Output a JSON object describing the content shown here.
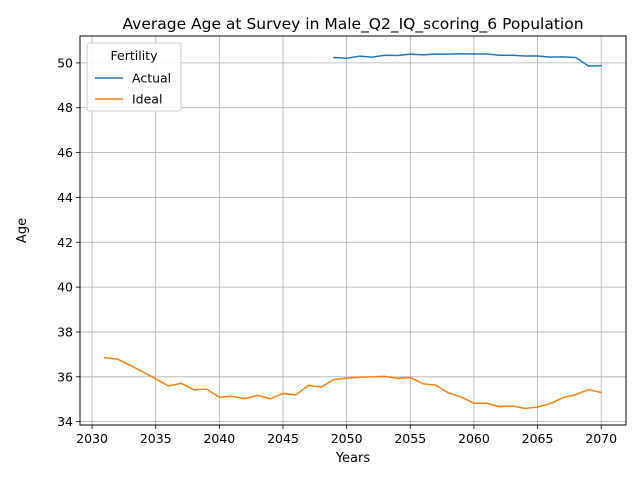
{
  "chart_data": {
    "type": "line",
    "title": "Average Age at Survey in Male_Q2_IQ_scoring_6 Population",
    "xlabel": "Years",
    "ylabel": "Age",
    "xlim": [
      2029.05,
      2071.95
    ],
    "ylim": [
      33.85,
      51.2
    ],
    "xticks": [
      2030,
      2035,
      2040,
      2045,
      2050,
      2055,
      2060,
      2065,
      2070
    ],
    "yticks": [
      34,
      36,
      38,
      40,
      42,
      44,
      46,
      48,
      50
    ],
    "grid": true,
    "legend": {
      "title": "Fertility",
      "placement": "top-left"
    },
    "series": [
      {
        "name": "Actual",
        "color": "#1f77b4",
        "x": [
          2049,
          2050,
          2051,
          2052,
          2053,
          2054,
          2055,
          2056,
          2057,
          2058,
          2059,
          2060,
          2061,
          2062,
          2063,
          2064,
          2065,
          2066,
          2067,
          2068,
          2069,
          2070
        ],
        "y": [
          50.24,
          50.21,
          50.3,
          50.26,
          50.34,
          50.33,
          50.39,
          50.36,
          50.4,
          50.39,
          50.41,
          50.4,
          50.4,
          50.34,
          50.34,
          50.31,
          50.31,
          50.26,
          50.27,
          50.24,
          49.86,
          49.88
        ]
      },
      {
        "name": "Ideal",
        "color": "#ff7f0e",
        "x": [
          2031,
          2032,
          2033,
          2034,
          2035,
          2036,
          2037,
          2038,
          2039,
          2040,
          2041,
          2042,
          2043,
          2044,
          2045,
          2046,
          2047,
          2048,
          2049,
          2050,
          2051,
          2052,
          2053,
          2054,
          2055,
          2056,
          2057,
          2058,
          2059,
          2060,
          2061,
          2062,
          2063,
          2064,
          2065,
          2066,
          2067,
          2068,
          2069,
          2070
        ],
        "y": [
          36.85,
          36.79,
          36.51,
          36.22,
          35.91,
          35.59,
          35.71,
          35.42,
          35.45,
          35.09,
          35.13,
          35.02,
          35.17,
          35.02,
          35.26,
          35.19,
          35.62,
          35.54,
          35.88,
          35.94,
          35.98,
          36.0,
          36.02,
          35.93,
          35.97,
          35.69,
          35.63,
          35.28,
          35.1,
          34.82,
          34.82,
          34.67,
          34.7,
          34.59,
          34.65,
          34.8,
          35.07,
          35.2,
          35.43,
          35.3
        ]
      }
    ]
  }
}
